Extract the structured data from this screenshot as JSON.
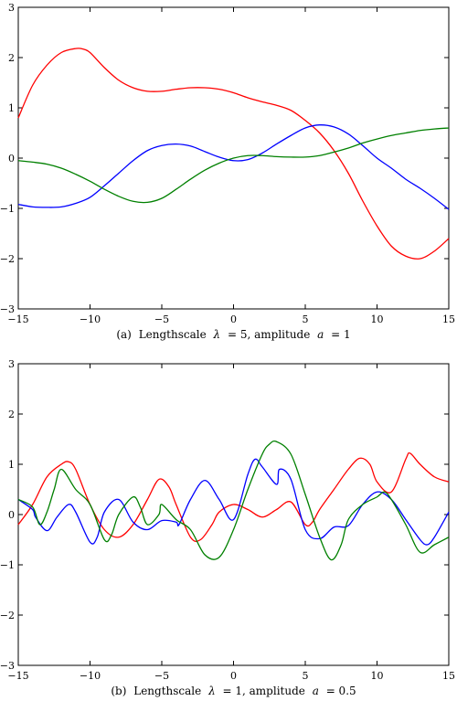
{
  "chart_data": [
    {
      "type": "line",
      "caption": {
        "prefix": "(a)",
        "text_1": "Lengthscale",
        "sym_1": "λ",
        "text_2": "= 5, amplitude",
        "sym_2": "a",
        "text_3": "= 1"
      },
      "xlim": [
        -15,
        15
      ],
      "ylim": [
        -3,
        3
      ],
      "xticks": [
        -15,
        -10,
        -5,
        0,
        5,
        10,
        15
      ],
      "yticks": [
        -3,
        -2,
        -1,
        0,
        1,
        2,
        3
      ],
      "xtick_labels": [
        "−15",
        "−10",
        "−5",
        "0",
        "5",
        "10",
        "15"
      ],
      "ytick_labels": [
        "−3",
        "−2",
        "−1",
        "0",
        "1",
        "2",
        "3"
      ],
      "grid": false,
      "series": [
        {
          "color": "#ff0000",
          "x": [
            -15,
            -14,
            -13,
            -12,
            -11,
            -10.5,
            -10,
            -9,
            -8,
            -7,
            -6,
            -5,
            -4,
            -3,
            -2,
            -1,
            0,
            1,
            2,
            3,
            4,
            5,
            6,
            7,
            8,
            9,
            10,
            11,
            12,
            13,
            14,
            15
          ],
          "y": [
            0.8,
            1.45,
            1.85,
            2.1,
            2.18,
            2.17,
            2.1,
            1.8,
            1.55,
            1.4,
            1.33,
            1.33,
            1.37,
            1.4,
            1.4,
            1.37,
            1.3,
            1.2,
            1.12,
            1.05,
            0.95,
            0.75,
            0.5,
            0.15,
            -0.3,
            -0.85,
            -1.35,
            -1.75,
            -1.95,
            -2.0,
            -1.85,
            -1.6
          ]
        },
        {
          "color": "#0000ff",
          "x": [
            -15,
            -14,
            -13,
            -12,
            -11,
            -10,
            -9,
            -8,
            -7,
            -6,
            -5,
            -4,
            -3,
            -2,
            -1,
            0,
            1,
            2,
            3,
            4,
            5,
            6,
            7,
            8,
            9,
            10,
            11,
            12,
            13,
            14,
            15
          ],
          "y": [
            -0.92,
            -0.97,
            -0.98,
            -0.97,
            -0.9,
            -0.78,
            -0.55,
            -0.3,
            -0.05,
            0.15,
            0.25,
            0.28,
            0.24,
            0.13,
            0.02,
            -0.05,
            -0.03,
            0.1,
            0.28,
            0.45,
            0.6,
            0.66,
            0.62,
            0.48,
            0.25,
            0.0,
            -0.2,
            -0.42,
            -0.6,
            -0.8,
            -1.02
          ]
        },
        {
          "color": "#008000",
          "x": [
            -15,
            -14,
            -13,
            -12,
            -11,
            -10,
            -9,
            -8,
            -7,
            -6,
            -5,
            -4,
            -3,
            -2,
            -1,
            0,
            1,
            2,
            3,
            4,
            5,
            6,
            7,
            8,
            9,
            10,
            11,
            12,
            13,
            14,
            15
          ],
          "y": [
            -0.05,
            -0.08,
            -0.12,
            -0.2,
            -0.32,
            -0.46,
            -0.62,
            -0.76,
            -0.86,
            -0.88,
            -0.8,
            -0.62,
            -0.42,
            -0.24,
            -0.1,
            0.0,
            0.05,
            0.05,
            0.03,
            0.02,
            0.02,
            0.05,
            0.12,
            0.2,
            0.3,
            0.38,
            0.45,
            0.5,
            0.55,
            0.58,
            0.6
          ]
        }
      ]
    },
    {
      "type": "line",
      "caption": {
        "prefix": "(b)",
        "text_1": "Lengthscale",
        "sym_1": "λ",
        "text_2": "= 1, amplitude",
        "sym_2": "a",
        "text_3": "= 0.5"
      },
      "xlim": [
        -15,
        15
      ],
      "ylim": [
        -3,
        3
      ],
      "xticks": [
        -15,
        -10,
        -5,
        0,
        5,
        10,
        15
      ],
      "yticks": [
        -3,
        -2,
        -1,
        0,
        1,
        2,
        3
      ],
      "xtick_labels": [
        "−15",
        "−10",
        "−5",
        "0",
        "5",
        "10",
        "15"
      ],
      "ytick_labels": [
        "−3",
        "−2",
        "−1",
        "0",
        "1",
        "2",
        "3"
      ],
      "grid": false,
      "series": [
        {
          "color": "#ff0000",
          "x": [
            -15,
            -14,
            -13,
            -12,
            -11.5,
            -11,
            -10,
            -9,
            -8,
            -7,
            -6,
            -5.2,
            -4.5,
            -4,
            -3,
            -2.3,
            -1.5,
            -1,
            0,
            1,
            2,
            3,
            4,
            5,
            5.5,
            6,
            7,
            8,
            8.8,
            9.5,
            10,
            11,
            12,
            12.3,
            13,
            14,
            15
          ],
          "y": [
            -0.2,
            0.2,
            0.75,
            1.0,
            1.05,
            0.9,
            0.2,
            -0.3,
            -0.45,
            -0.2,
            0.3,
            0.7,
            0.55,
            0.2,
            -0.45,
            -0.5,
            -0.2,
            0.05,
            0.2,
            0.1,
            -0.05,
            0.1,
            0.25,
            -0.2,
            -0.15,
            0.1,
            0.5,
            0.9,
            1.12,
            1.0,
            0.65,
            0.45,
            1.1,
            1.22,
            1.0,
            0.75,
            0.65
          ]
        },
        {
          "color": "#0000ff",
          "x": [
            -15,
            -14,
            -13.8,
            -13,
            -12.3,
            -11.5,
            -11,
            -10,
            -9.5,
            -9,
            -8,
            -7,
            -6,
            -5,
            -4,
            -3.8,
            -3,
            -2,
            -1,
            0,
            1,
            1.5,
            2,
            3,
            3.2,
            4,
            5,
            6,
            7,
            8,
            9,
            10,
            11,
            12,
            13,
            13.5,
            14,
            15
          ],
          "y": [
            0.3,
            0.1,
            -0.05,
            -0.32,
            -0.05,
            0.2,
            0.05,
            -0.55,
            -0.45,
            0.05,
            0.3,
            -0.15,
            -0.3,
            -0.12,
            -0.15,
            -0.2,
            0.3,
            0.68,
            0.3,
            -0.1,
            0.8,
            1.1,
            0.95,
            0.6,
            0.9,
            0.7,
            -0.3,
            -0.48,
            -0.25,
            -0.22,
            0.2,
            0.45,
            0.3,
            -0.1,
            -0.5,
            -0.6,
            -0.45,
            0.05
          ]
        },
        {
          "color": "#008000",
          "x": [
            -15,
            -14,
            -13.5,
            -13,
            -12.5,
            -12,
            -11,
            -10,
            -9,
            -8.5,
            -8,
            -7,
            -6.5,
            -6,
            -5.2,
            -5,
            -4,
            -3,
            -2,
            -1,
            0,
            1,
            2,
            2.5,
            3,
            4,
            5,
            6,
            6.8,
            7.5,
            8,
            9,
            10,
            10.5,
            11,
            12,
            13,
            14,
            15
          ],
          "y": [
            0.3,
            0.15,
            -0.2,
            0.05,
            0.5,
            0.9,
            0.5,
            0.2,
            -0.5,
            -0.4,
            0.0,
            0.35,
            0.15,
            -0.2,
            0.0,
            0.2,
            -0.1,
            -0.3,
            -0.8,
            -0.85,
            -0.3,
            0.5,
            1.2,
            1.4,
            1.45,
            1.2,
            0.4,
            -0.45,
            -0.9,
            -0.6,
            -0.1,
            0.2,
            0.35,
            0.45,
            0.3,
            -0.2,
            -0.75,
            -0.6,
            -0.45
          ]
        }
      ]
    }
  ]
}
